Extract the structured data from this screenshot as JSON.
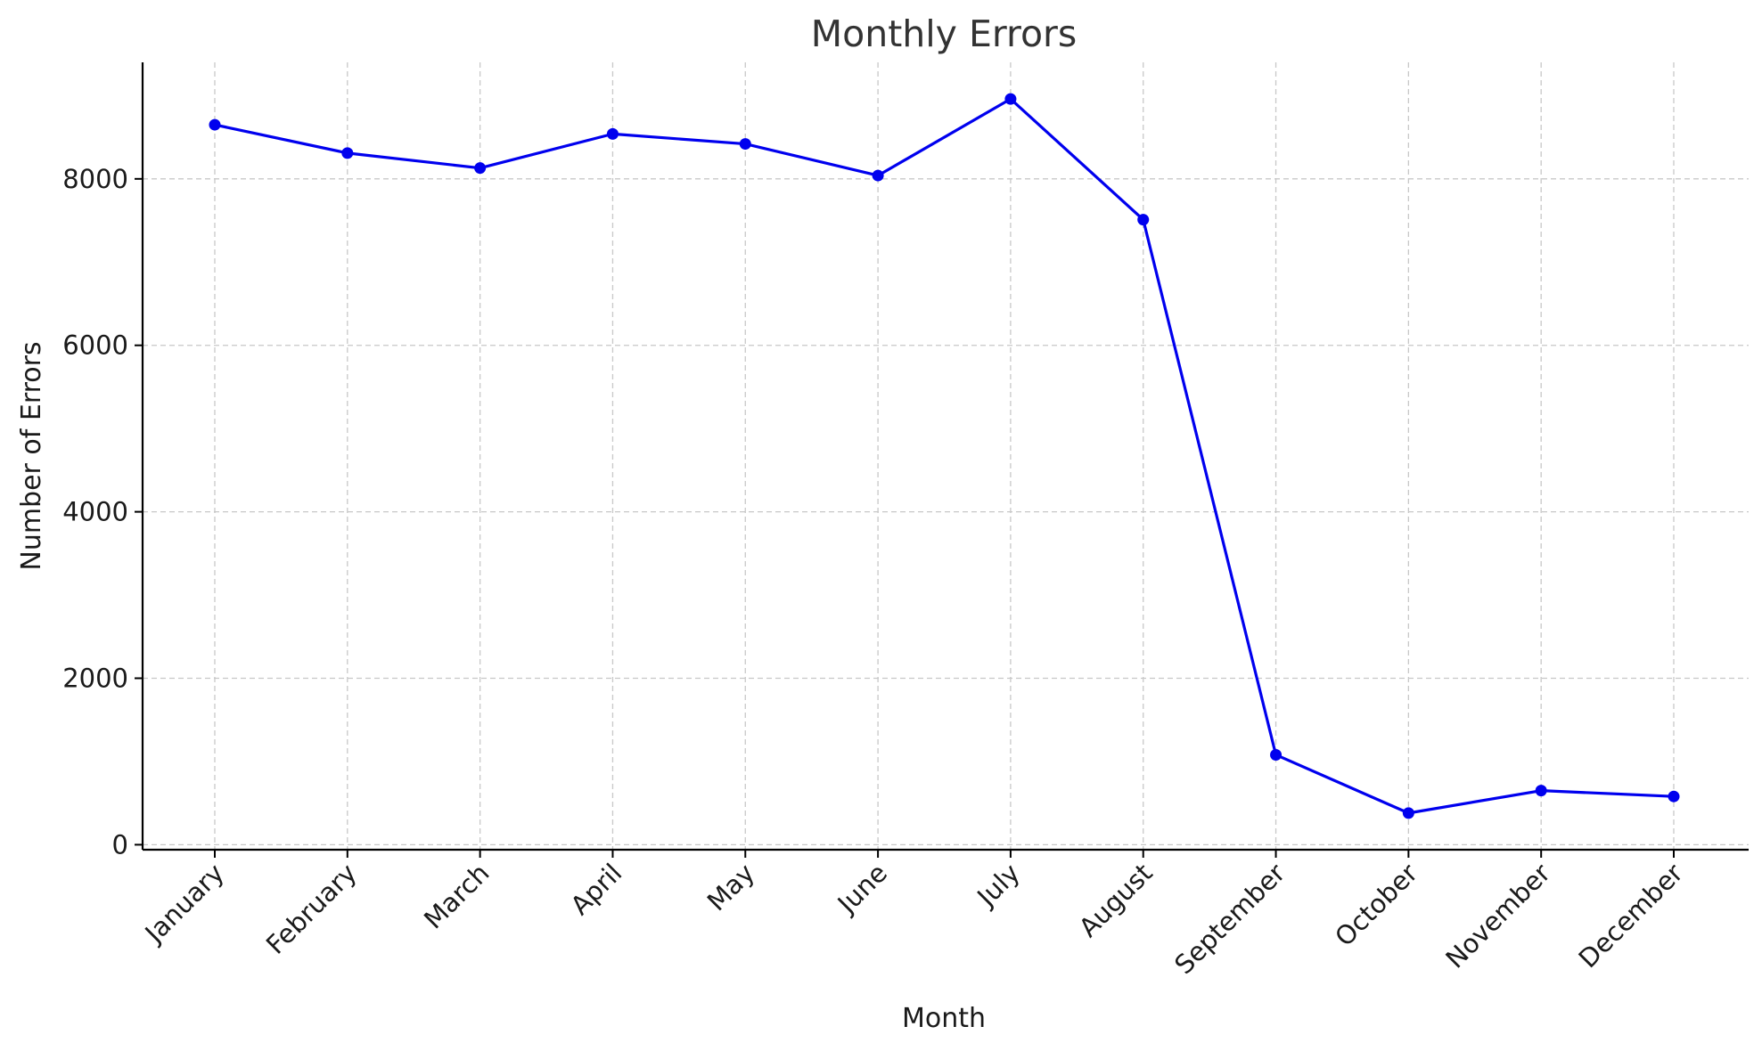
{
  "chart_data": {
    "type": "line",
    "title": "Monthly Errors",
    "xlabel": "Month",
    "ylabel": "Number of Errors",
    "categories": [
      "January",
      "February",
      "March",
      "April",
      "May",
      "June",
      "July",
      "August",
      "September",
      "October",
      "November",
      "December"
    ],
    "series": [
      {
        "values": [
          8650,
          8310,
          8130,
          8540,
          8420,
          8040,
          8960,
          7510,
          1080,
          380,
          650,
          580
        ],
        "color": "#0000ee",
        "marker": "circle"
      }
    ],
    "yticks": [
      0,
      2000,
      4000,
      6000,
      8000
    ],
    "ytick_labels": [
      "0",
      "2000",
      "4000",
      "6000",
      "8000"
    ],
    "ylim": [
      -60,
      9400
    ],
    "grid": true,
    "legend": "none"
  }
}
